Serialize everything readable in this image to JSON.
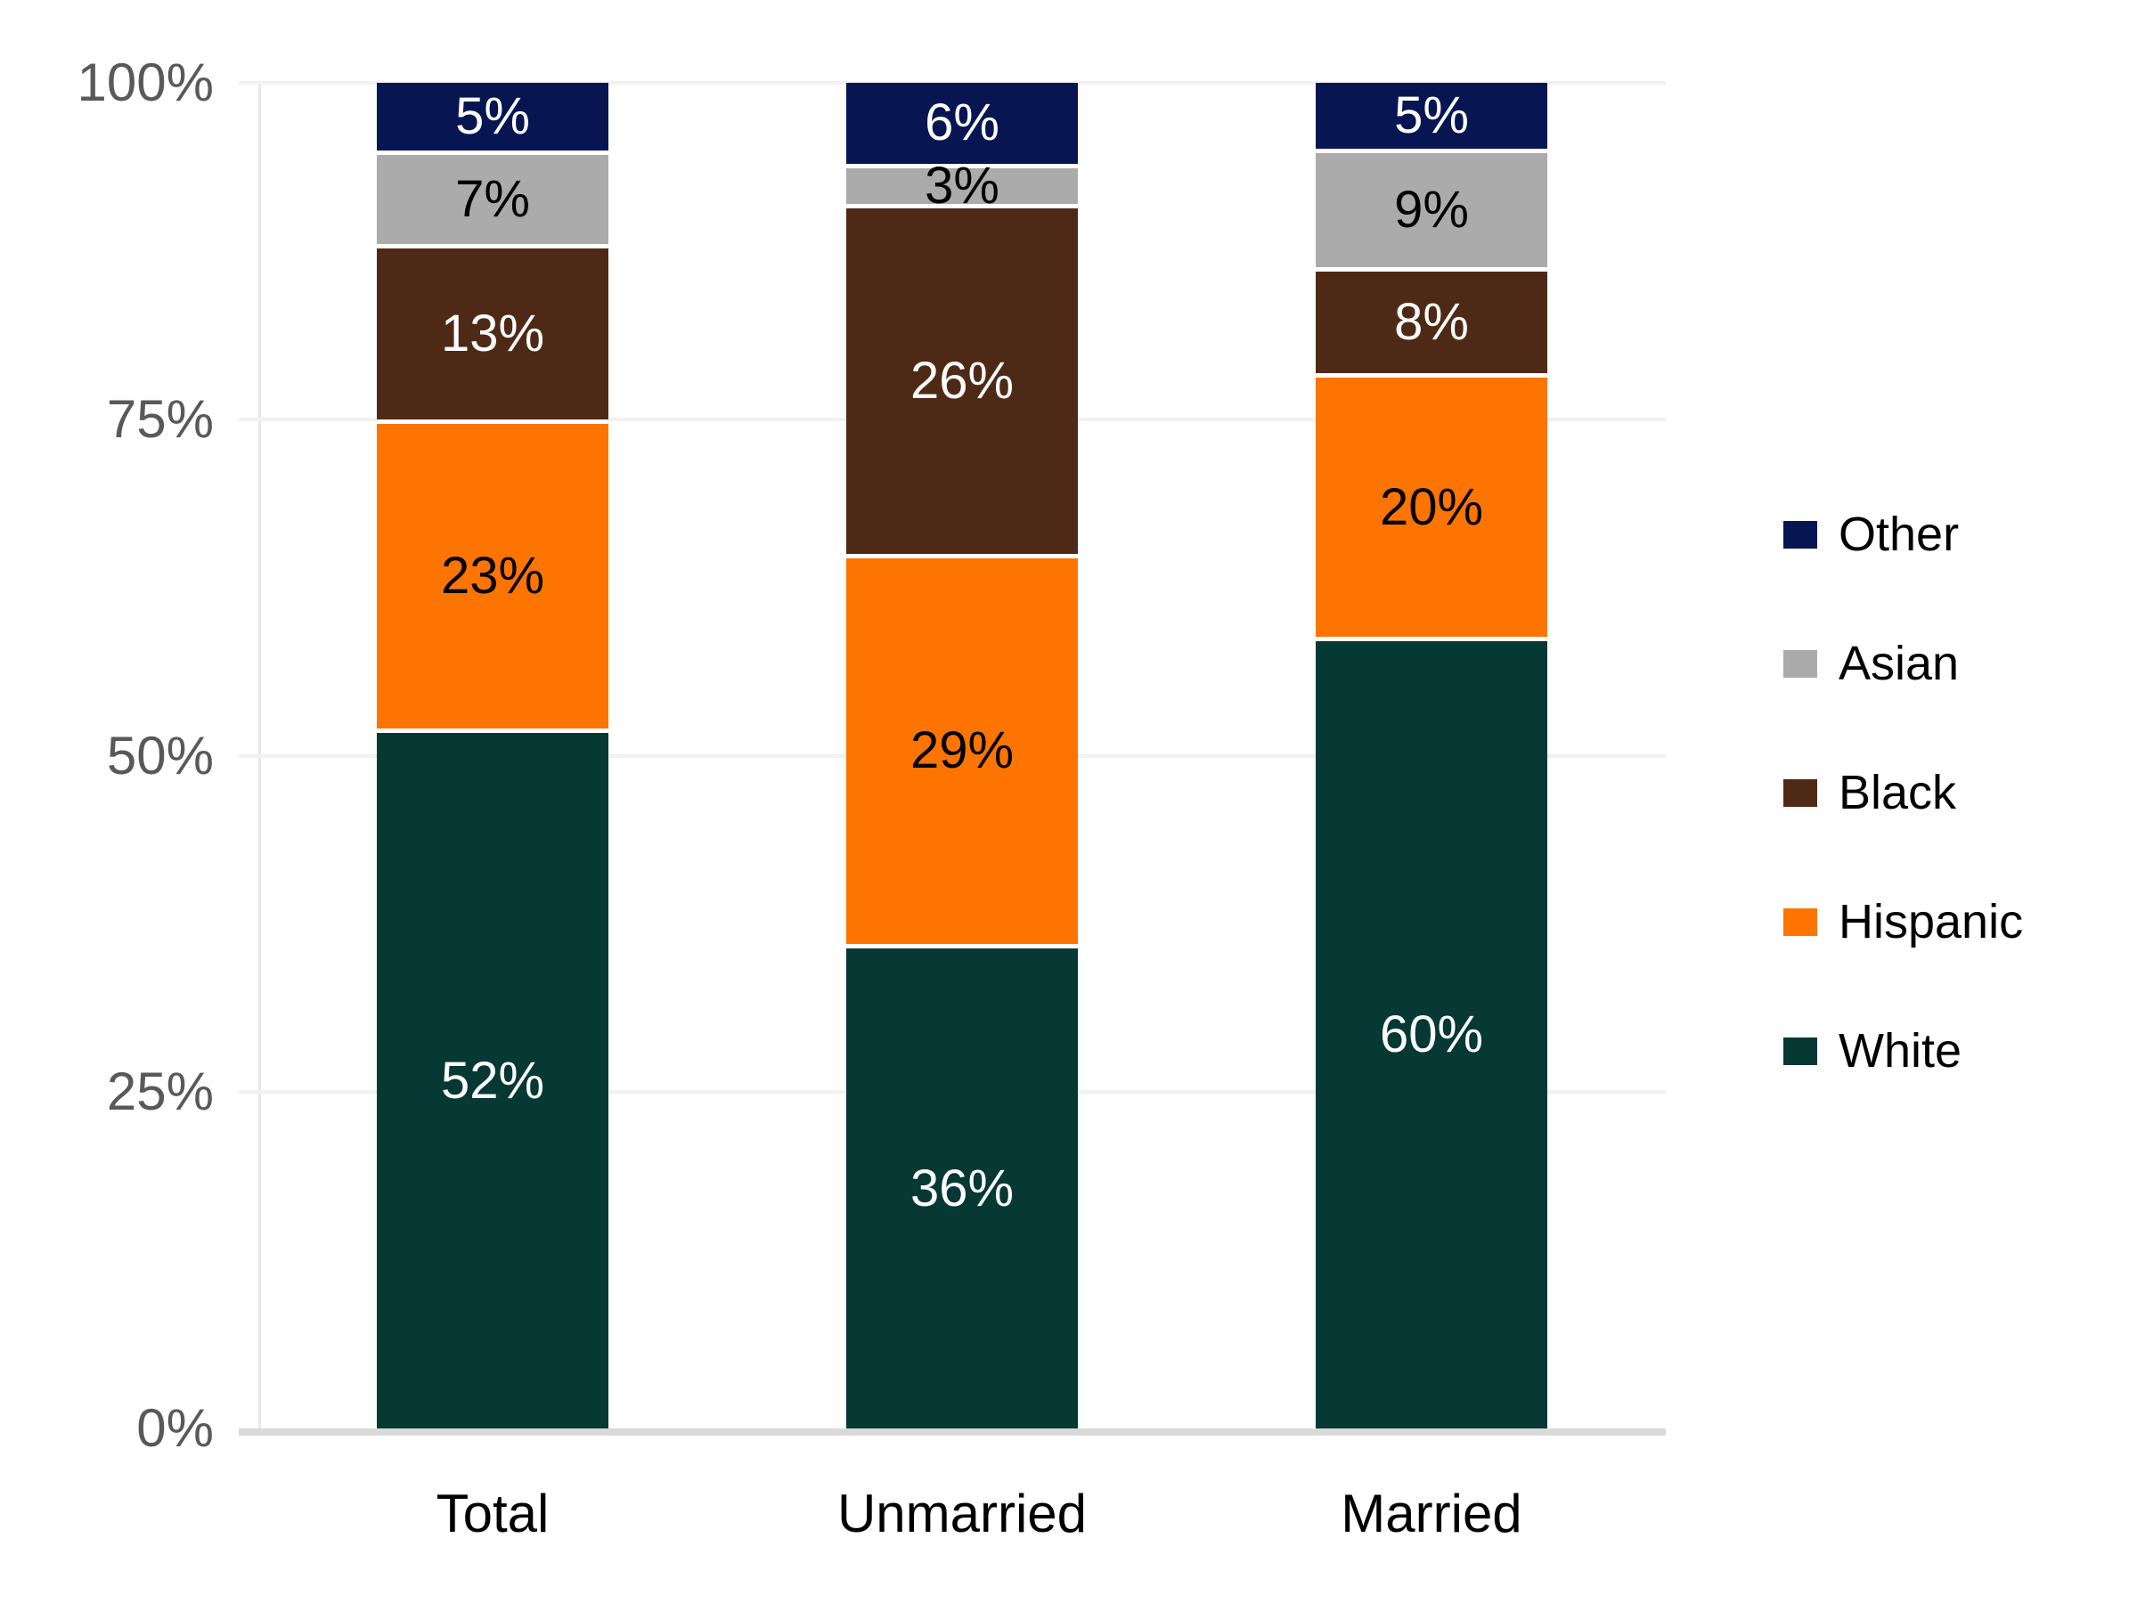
{
  "chart_data": {
    "type": "bar",
    "variant": "stacked-percent-column",
    "categories": [
      "Total",
      "Unmarried",
      "Married"
    ],
    "series": [
      {
        "name": "White",
        "color": "#063834",
        "label_color": "#ffffff",
        "values": [
          52,
          36,
          60
        ],
        "labels": [
          "52%",
          "36%",
          "60%"
        ]
      },
      {
        "name": "Hispanic",
        "color": "#fd7400",
        "label_color": "#000000",
        "values": [
          23,
          29,
          20
        ],
        "labels": [
          "23%",
          "29%",
          "20%"
        ]
      },
      {
        "name": "Black",
        "color": "#4e2a16",
        "label_color": "#ffffff",
        "values": [
          13,
          26,
          8
        ],
        "labels": [
          "13%",
          "26%",
          "8%"
        ]
      },
      {
        "name": "Asian",
        "color": "#ababab",
        "label_color": "#000000",
        "values": [
          7,
          3,
          9
        ],
        "labels": [
          "7%",
          "3%",
          "9%"
        ]
      },
      {
        "name": "Other",
        "color": "#071553",
        "label_color": "#ffffff",
        "values": [
          5,
          6,
          5
        ],
        "labels": [
          "5%",
          "6%",
          "5%"
        ]
      }
    ],
    "y_axis": {
      "ticks": [
        "0%",
        "25%",
        "50%",
        "75%",
        "100%"
      ],
      "min": 0,
      "max": 100,
      "tick_color": "#595959"
    },
    "x_axis": {
      "label_color": "#000000"
    },
    "legend": {
      "position": "right",
      "order": [
        "Other",
        "Asian",
        "Black",
        "Hispanic",
        "White"
      ],
      "label_color": "#000000"
    },
    "grid": {
      "show": true,
      "color": "#f1f1f1",
      "axis_line_color": "#d9d9d9"
    }
  }
}
